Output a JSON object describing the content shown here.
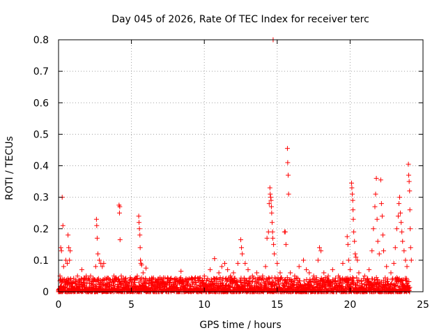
{
  "chart_data": {
    "type": "scatter",
    "title": "Day 045 of 2026, Rate Of TEC Index for receiver terc",
    "xlabel": "GPS time / hours",
    "ylabel": "ROTI / TECUs",
    "xlim": [
      0,
      25
    ],
    "ylim": [
      0,
      0.8
    ],
    "xticks": [
      "0",
      "5",
      "10",
      "15",
      "20",
      "25"
    ],
    "yticks": [
      "0",
      "0.1",
      "0.2",
      "0.3",
      "0.4",
      "0.5",
      "0.6",
      "0.7",
      "0.8"
    ],
    "grid": true,
    "marker": "+",
    "color": "#ff0000",
    "series": [
      {
        "name": "ROTI",
        "points": [
          [
            0.1,
            0.05
          ],
          [
            0.15,
            0.14
          ],
          [
            0.2,
            0.13
          ],
          [
            0.25,
            0.3
          ],
          [
            0.3,
            0.21
          ],
          [
            0.35,
            0.08
          ],
          [
            0.5,
            0.1
          ],
          [
            0.6,
            0.09
          ],
          [
            0.65,
            0.18
          ],
          [
            0.7,
            0.14
          ],
          [
            0.75,
            0.1
          ],
          [
            0.8,
            0.13
          ],
          [
            1.0,
            0.03
          ],
          [
            1.3,
            0.05
          ],
          [
            1.6,
            0.07
          ],
          [
            1.9,
            0.05
          ],
          [
            2.2,
            0.05
          ],
          [
            2.55,
            0.08
          ],
          [
            2.6,
            0.23
          ],
          [
            2.62,
            0.21
          ],
          [
            2.65,
            0.17
          ],
          [
            2.7,
            0.12
          ],
          [
            2.8,
            0.1
          ],
          [
            2.9,
            0.09
          ],
          [
            3.0,
            0.08
          ],
          [
            3.1,
            0.09
          ],
          [
            3.5,
            0.03
          ],
          [
            3.8,
            0.05
          ],
          [
            4.1,
            0.04
          ],
          [
            4.15,
            0.275
          ],
          [
            4.18,
            0.25
          ],
          [
            4.2,
            0.27
          ],
          [
            4.22,
            0.165
          ],
          [
            4.3,
            0.05
          ],
          [
            4.6,
            0.04
          ],
          [
            5.0,
            0.03
          ],
          [
            5.4,
            0.05
          ],
          [
            5.5,
            0.24
          ],
          [
            5.52,
            0.22
          ],
          [
            5.55,
            0.2
          ],
          [
            5.58,
            0.18
          ],
          [
            5.6,
            0.14
          ],
          [
            5.62,
            0.1
          ],
          [
            5.65,
            0.09
          ],
          [
            5.7,
            0.085
          ],
          [
            5.8,
            0.06
          ],
          [
            6.0,
            0.075
          ],
          [
            6.4,
            0.03
          ],
          [
            6.8,
            0.04
          ],
          [
            7.2,
            0.03
          ],
          [
            7.6,
            0.035
          ],
          [
            8.0,
            0.04
          ],
          [
            8.4,
            0.065
          ],
          [
            8.8,
            0.03
          ],
          [
            9.2,
            0.04
          ],
          [
            9.6,
            0.035
          ],
          [
            10.0,
            0.05
          ],
          [
            10.4,
            0.07
          ],
          [
            10.7,
            0.105
          ],
          [
            11.0,
            0.06
          ],
          [
            11.2,
            0.08
          ],
          [
            11.4,
            0.09
          ],
          [
            11.6,
            0.07
          ],
          [
            11.8,
            0.05
          ],
          [
            12.0,
            0.06
          ],
          [
            12.3,
            0.09
          ],
          [
            12.5,
            0.165
          ],
          [
            12.55,
            0.14
          ],
          [
            12.6,
            0.12
          ],
          [
            12.8,
            0.09
          ],
          [
            13.0,
            0.07
          ],
          [
            13.3,
            0.05
          ],
          [
            13.6,
            0.06
          ],
          [
            14.0,
            0.05
          ],
          [
            14.2,
            0.08
          ],
          [
            14.3,
            0.17
          ],
          [
            14.4,
            0.19
          ],
          [
            14.45,
            0.28
          ],
          [
            14.5,
            0.33
          ],
          [
            14.52,
            0.31
          ],
          [
            14.55,
            0.3
          ],
          [
            14.58,
            0.29
          ],
          [
            14.6,
            0.27
          ],
          [
            14.62,
            0.25
          ],
          [
            14.65,
            0.22
          ],
          [
            14.68,
            0.19
          ],
          [
            14.7,
            0.17
          ],
          [
            14.72,
            0.8
          ],
          [
            14.75,
            0.15
          ],
          [
            14.8,
            0.12
          ],
          [
            15.0,
            0.09
          ],
          [
            15.2,
            0.06
          ],
          [
            15.5,
            0.19
          ],
          [
            15.55,
            0.19
          ],
          [
            15.6,
            0.15
          ],
          [
            15.7,
            0.455
          ],
          [
            15.72,
            0.41
          ],
          [
            15.75,
            0.37
          ],
          [
            15.78,
            0.31
          ],
          [
            15.9,
            0.06
          ],
          [
            16.2,
            0.05
          ],
          [
            16.5,
            0.08
          ],
          [
            16.8,
            0.1
          ],
          [
            17.0,
            0.07
          ],
          [
            17.2,
            0.06
          ],
          [
            17.5,
            0.05
          ],
          [
            17.8,
            0.1
          ],
          [
            17.9,
            0.14
          ],
          [
            18.0,
            0.13
          ],
          [
            18.2,
            0.06
          ],
          [
            18.5,
            0.05
          ],
          [
            18.8,
            0.07
          ],
          [
            19.2,
            0.05
          ],
          [
            19.5,
            0.09
          ],
          [
            19.8,
            0.175
          ],
          [
            19.85,
            0.15
          ],
          [
            19.9,
            0.1
          ],
          [
            20.0,
            0.07
          ],
          [
            20.1,
            0.345
          ],
          [
            20.12,
            0.33
          ],
          [
            20.15,
            0.31
          ],
          [
            20.18,
            0.29
          ],
          [
            20.2,
            0.26
          ],
          [
            20.22,
            0.23
          ],
          [
            20.25,
            0.19
          ],
          [
            20.3,
            0.16
          ],
          [
            20.35,
            0.12
          ],
          [
            20.4,
            0.11
          ],
          [
            20.5,
            0.1
          ],
          [
            20.6,
            0.06
          ],
          [
            21.0,
            0.05
          ],
          [
            21.3,
            0.07
          ],
          [
            21.5,
            0.13
          ],
          [
            21.6,
            0.2
          ],
          [
            21.7,
            0.27
          ],
          [
            21.75,
            0.31
          ],
          [
            21.8,
            0.36
          ],
          [
            21.85,
            0.23
          ],
          [
            21.9,
            0.16
          ],
          [
            22.0,
            0.12
          ],
          [
            22.1,
            0.355
          ],
          [
            22.15,
            0.28
          ],
          [
            22.2,
            0.24
          ],
          [
            22.25,
            0.18
          ],
          [
            22.3,
            0.13
          ],
          [
            22.5,
            0.08
          ],
          [
            22.8,
            0.06
          ],
          [
            23.0,
            0.09
          ],
          [
            23.1,
            0.14
          ],
          [
            23.2,
            0.2
          ],
          [
            23.3,
            0.24
          ],
          [
            23.35,
            0.28
          ],
          [
            23.4,
            0.3
          ],
          [
            23.45,
            0.25
          ],
          [
            23.5,
            0.22
          ],
          [
            23.55,
            0.19
          ],
          [
            23.6,
            0.16
          ],
          [
            23.7,
            0.13
          ],
          [
            23.8,
            0.1
          ],
          [
            23.9,
            0.08
          ],
          [
            24.0,
            0.405
          ],
          [
            24.02,
            0.37
          ],
          [
            24.05,
            0.35
          ],
          [
            24.08,
            0.32
          ],
          [
            24.1,
            0.26
          ],
          [
            24.12,
            0.2
          ],
          [
            24.15,
            0.14
          ],
          [
            24.2,
            0.1
          ]
        ]
      }
    ]
  }
}
